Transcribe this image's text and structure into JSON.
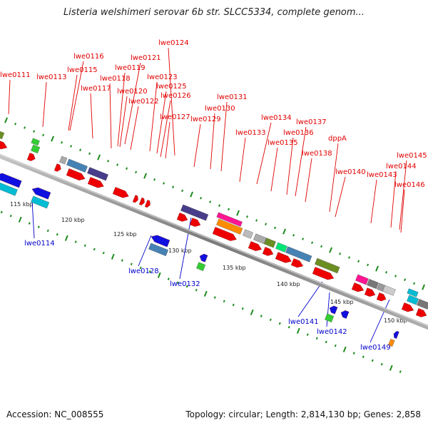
{
  "title": "Listeria welshimeri serovar 6b str. SLCC5334, complete genom...",
  "footer": {
    "accession": "Accession: NC_008555",
    "topology": "Topology: circular; Length: 2,814,130 bp; Genes: 2,858"
  },
  "colors": {
    "forward_label": "#e00000",
    "reverse_label": "#0000cc",
    "backbone": "#8a8a8a",
    "tick": "#1e8a1e"
  },
  "scale": {
    "unit": "kbp",
    "ticks": [
      {
        "label": "115 kbp",
        "value": 115
      },
      {
        "label": "120 kbp",
        "value": 120
      },
      {
        "label": "125 kbp",
        "value": 125
      },
      {
        "label": "130 kbp",
        "value": 130
      },
      {
        "label": "135 kbp",
        "value": 135
      },
      {
        "label": "140 kbp",
        "value": 140
      },
      {
        "label": "145 kbp",
        "value": 145
      },
      {
        "label": "150 kbp",
        "value": 150
      }
    ]
  },
  "genes_forward": [
    "lwe0111",
    "lwe0113",
    "lwe0116",
    "lwe0115",
    "lwe0121",
    "lwe0119",
    "lwe0118",
    "lwe0117",
    "lwe0124",
    "lwe0123",
    "lwe0125",
    "lwe0120",
    "lwe0122",
    "lwe0126",
    "lwe0127",
    "lwe0131",
    "lwe0130",
    "lwe0129",
    "lwe0134",
    "lwe0133",
    "lwe0137",
    "lwe0136",
    "lwe0135",
    "dppA",
    "lwe0138",
    "lwe0140",
    "lwe0145",
    "lwe0144",
    "lwe0143",
    "lwe0146"
  ],
  "genes_reverse": [
    "lwe0114",
    "lwe0128",
    "lwe0132",
    "lwe0141",
    "lwe0142",
    "lwe0149"
  ]
}
